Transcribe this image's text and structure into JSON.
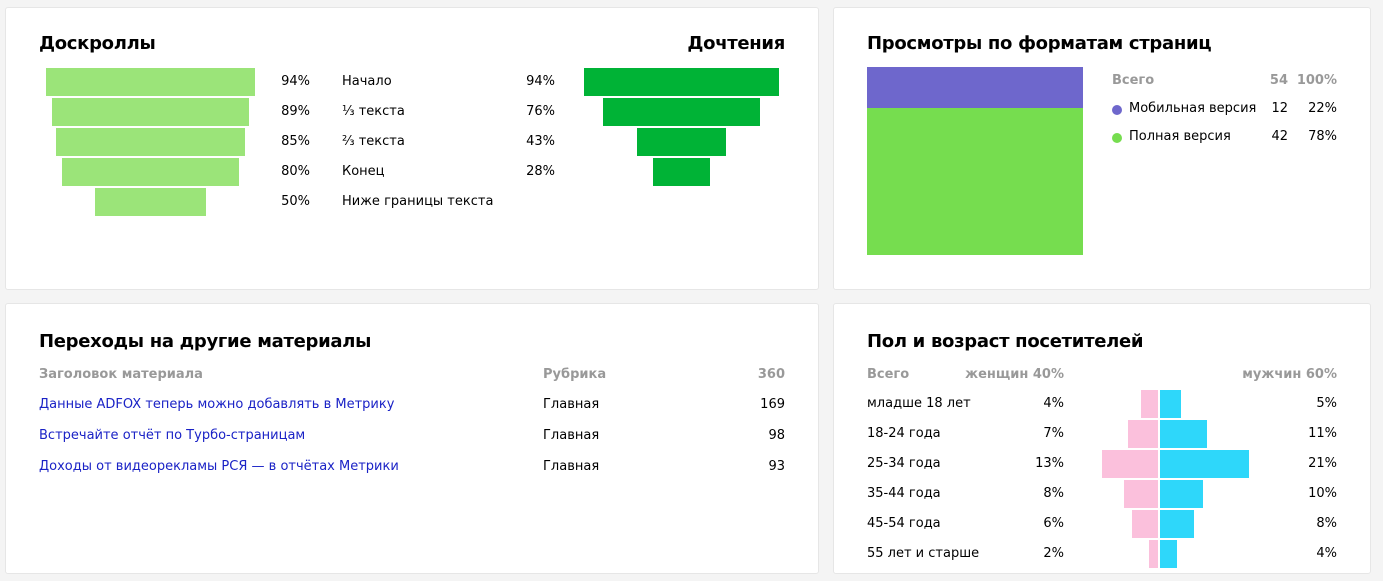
{
  "scroll": {
    "title": "Доскроллы",
    "read_title": "Дочтения",
    "color": "#9be479",
    "read_color": "#00b336",
    "rows": [
      {
        "label": "Начало",
        "scroll": 94,
        "read": 94
      },
      {
        "label": "⅓ текста",
        "scroll": 89,
        "read": 76
      },
      {
        "label": "⅔ текста",
        "scroll": 85,
        "read": 43
      },
      {
        "label": "Конец",
        "scroll": 80,
        "read": 28
      },
      {
        "label": "Ниже границы текста",
        "scroll": 50,
        "read": null
      }
    ],
    "scroll_text": [
      "94%",
      "89%",
      "85%",
      "80%",
      "50%"
    ],
    "read_text": [
      "94%",
      "76%",
      "43%",
      "28%"
    ]
  },
  "formats": {
    "title": "Просмотры по форматам страниц",
    "total_label": "Всего",
    "total_count": "54",
    "total_pct": "100%",
    "items": [
      {
        "label": "Мобильная версия",
        "count": "12",
        "pct": "22%",
        "value": 22,
        "color": "#6e67cc"
      },
      {
        "label": "Полная версия",
        "count": "42",
        "pct": "78%",
        "value": 78,
        "color": "#76dd4f"
      }
    ]
  },
  "transitions": {
    "title": "Переходы на другие материалы",
    "col_title": "Заголовок материала",
    "col_rubric": "Рубрика",
    "col_total": "360",
    "rows": [
      {
        "title": "Данные ADFOX теперь можно добавлять в Метрику",
        "rubric": "Главная",
        "count": "169"
      },
      {
        "title": "Встречайте отчёт по Турбо-страницам",
        "rubric": "Главная",
        "count": "98"
      },
      {
        "title": "Доходы от видеорекламы РСЯ — в отчётах Метрики",
        "rubric": "Главная",
        "count": "93"
      }
    ]
  },
  "demo": {
    "title": "Пол и возраст посетителей",
    "total_label": "Всего",
    "female_label": "женщин 40%",
    "male_label": "мужчин 60%",
    "female_color": "#fbc0dc",
    "male_color": "#2ed7fa",
    "rows": [
      {
        "age": "младше 18 лет",
        "female": 4,
        "male": 5,
        "female_text": "4%",
        "male_text": "5%"
      },
      {
        "age": "18-24 года",
        "female": 7,
        "male": 11,
        "female_text": "7%",
        "male_text": "11%"
      },
      {
        "age": "25-34 года",
        "female": 13,
        "male": 21,
        "female_text": "13%",
        "male_text": "21%"
      },
      {
        "age": "35-44 года",
        "female": 8,
        "male": 10,
        "female_text": "8%",
        "male_text": "10%"
      },
      {
        "age": "45-54 года",
        "female": 6,
        "male": 8,
        "female_text": "6%",
        "male_text": "8%"
      },
      {
        "age": "55 лет и старше",
        "female": 2,
        "male": 4,
        "female_text": "2%",
        "male_text": "4%"
      }
    ]
  }
}
